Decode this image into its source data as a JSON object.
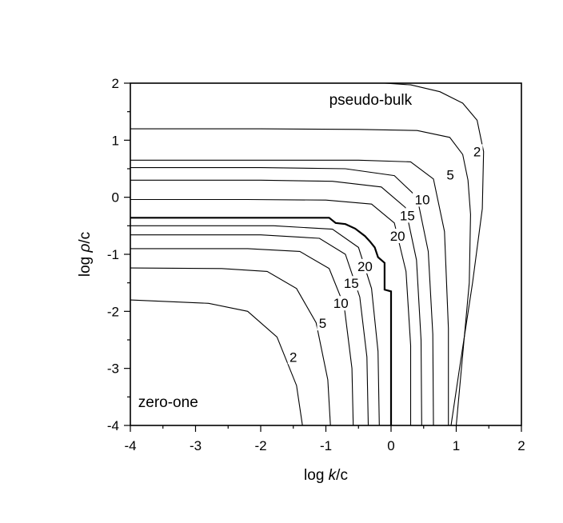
{
  "chart_data": {
    "type": "line",
    "title": "",
    "xlabel": {
      "prefix": "log ",
      "italic": "k",
      "suffix": "/c"
    },
    "ylabel": {
      "prefix": "log ",
      "italic": "ρ",
      "suffix": "/c"
    },
    "xlim": [
      -4,
      2
    ],
    "ylim": [
      -4,
      2
    ],
    "x_ticks": [
      "-4",
      "-3",
      "-2",
      "-1",
      "0",
      "1",
      "2"
    ],
    "y_ticks": [
      "-4",
      "-3",
      "-2",
      "-1",
      "0",
      "1",
      "2"
    ],
    "region_labels": [
      {
        "text": "pseudo-bulk",
        "x": -0.95,
        "y": 1.62
      },
      {
        "text": "zero-one",
        "x": -3.88,
        "y": -3.68
      }
    ],
    "series": [
      {
        "label": "2",
        "bold": false,
        "points": [
          [
            -1.36,
            -4
          ],
          [
            -1.45,
            -3.3
          ],
          [
            -1.75,
            -2.45
          ],
          [
            -2.2,
            -2.0
          ],
          [
            -2.8,
            -1.86
          ],
          [
            -4,
            -1.8
          ]
        ]
      },
      {
        "label": "5",
        "bold": false,
        "points": [
          [
            -0.93,
            -4
          ],
          [
            -0.97,
            -3.2
          ],
          [
            -1.15,
            -2.2
          ],
          [
            -1.45,
            -1.6
          ],
          [
            -1.9,
            -1.3
          ],
          [
            -2.6,
            -1.25
          ],
          [
            -4,
            -1.24
          ]
        ]
      },
      {
        "label": "10",
        "bold": false,
        "points": [
          [
            -0.58,
            -4
          ],
          [
            -0.6,
            -3.0
          ],
          [
            -0.72,
            -1.9
          ],
          [
            -0.95,
            -1.25
          ],
          [
            -1.4,
            -0.95
          ],
          [
            -2.2,
            -0.9
          ],
          [
            -4,
            -0.9
          ]
        ]
      },
      {
        "label": "15",
        "bold": false,
        "points": [
          [
            -0.35,
            -4
          ],
          [
            -0.37,
            -2.8
          ],
          [
            -0.48,
            -1.75
          ],
          [
            -0.7,
            -1.0
          ],
          [
            -1.1,
            -0.72
          ],
          [
            -2.0,
            -0.66
          ],
          [
            -4,
            -0.66
          ]
        ]
      },
      {
        "label": "20",
        "bold": false,
        "points": [
          [
            -0.18,
            -4
          ],
          [
            -0.2,
            -2.7
          ],
          [
            -0.3,
            -1.6
          ],
          [
            -0.5,
            -0.88
          ],
          [
            -0.9,
            -0.56
          ],
          [
            -1.8,
            -0.5
          ],
          [
            -4,
            -0.5
          ]
        ]
      },
      {
        "label": "",
        "bold": true,
        "points": [
          [
            0,
            -4
          ],
          [
            0,
            -1.65
          ],
          [
            -0.1,
            -1.62
          ],
          [
            -0.1,
            -1.15
          ],
          [
            -0.2,
            -1.05
          ],
          [
            -0.25,
            -0.88
          ],
          [
            -0.32,
            -0.78
          ],
          [
            -0.4,
            -0.68
          ],
          [
            -0.55,
            -0.55
          ],
          [
            -0.7,
            -0.47
          ],
          [
            -0.85,
            -0.45
          ],
          [
            -0.95,
            -0.36
          ],
          [
            -4,
            -0.36
          ]
        ]
      },
      {
        "label": "20",
        "bold": false,
        "points": [
          [
            0.3,
            -4
          ],
          [
            0.3,
            -2.6
          ],
          [
            0.23,
            -1.3
          ],
          [
            0.05,
            -0.45
          ],
          [
            -0.3,
            -0.12
          ],
          [
            -1.0,
            -0.05
          ],
          [
            -2.2,
            -0.04
          ],
          [
            -4,
            -0.04
          ]
        ]
      },
      {
        "label": "15",
        "bold": false,
        "points": [
          [
            0.47,
            -4
          ],
          [
            0.46,
            -2.5
          ],
          [
            0.39,
            -1.1
          ],
          [
            0.22,
            -0.18
          ],
          [
            -0.15,
            0.18
          ],
          [
            -0.9,
            0.28
          ],
          [
            -2.0,
            0.3
          ],
          [
            -4,
            0.3
          ]
        ]
      },
      {
        "label": "10",
        "bold": false,
        "points": [
          [
            0.65,
            -4
          ],
          [
            0.64,
            -2.4
          ],
          [
            0.57,
            -0.95
          ],
          [
            0.4,
            0.0
          ],
          [
            0.05,
            0.38
          ],
          [
            -0.7,
            0.5
          ],
          [
            -2.0,
            0.52
          ],
          [
            -4,
            0.52
          ]
        ]
      },
      {
        "label": "5",
        "bold": false,
        "points": [
          [
            0.88,
            -4
          ],
          [
            0.88,
            -2.3
          ],
          [
            0.82,
            -0.6
          ],
          [
            0.65,
            0.32
          ],
          [
            0.3,
            0.62
          ],
          [
            -0.5,
            0.65
          ],
          [
            -2.0,
            0.65
          ],
          [
            -4,
            0.65
          ]
        ]
      },
      {
        "label": "2",
        "bold": false,
        "points": [
          [
            0.92,
            -4
          ],
          [
            1.05,
            -3.0
          ],
          [
            1.25,
            -1.5
          ],
          [
            1.4,
            -0.2
          ],
          [
            1.42,
            0.8
          ],
          [
            1.32,
            1.35
          ],
          [
            1.1,
            1.65
          ],
          [
            0.75,
            1.85
          ],
          [
            0.3,
            1.97
          ],
          [
            -0.1,
            2.0
          ]
        ]
      },
      {
        "label": "",
        "bold": false,
        "points": [
          [
            -4,
            1.2
          ],
          [
            -2.0,
            1.2
          ],
          [
            -0.5,
            1.19
          ],
          [
            0.4,
            1.17
          ],
          [
            0.9,
            1.05
          ],
          [
            1.1,
            0.75
          ],
          [
            1.18,
            0.3
          ],
          [
            1.22,
            -0.3
          ],
          [
            1.2,
            -1.5
          ],
          [
            1.08,
            -3.0
          ],
          [
            1.0,
            -4
          ]
        ]
      }
    ],
    "contour_labels": [
      {
        "text": "2",
        "x": -1.5,
        "y": -2.84
      },
      {
        "text": "5",
        "x": -1.05,
        "y": -2.25
      },
      {
        "text": "10",
        "x": -0.77,
        "y": -1.9
      },
      {
        "text": "15",
        "x": -0.61,
        "y": -1.55
      },
      {
        "text": "20",
        "x": -0.4,
        "y": -1.25
      },
      {
        "text": "20",
        "x": 0.1,
        "y": -0.72
      },
      {
        "text": "15",
        "x": 0.25,
        "y": -0.36
      },
      {
        "text": "10",
        "x": 0.48,
        "y": -0.08
      },
      {
        "text": "5",
        "x": 0.91,
        "y": 0.35
      },
      {
        "text": "2",
        "x": 1.32,
        "y": 0.76
      }
    ]
  }
}
